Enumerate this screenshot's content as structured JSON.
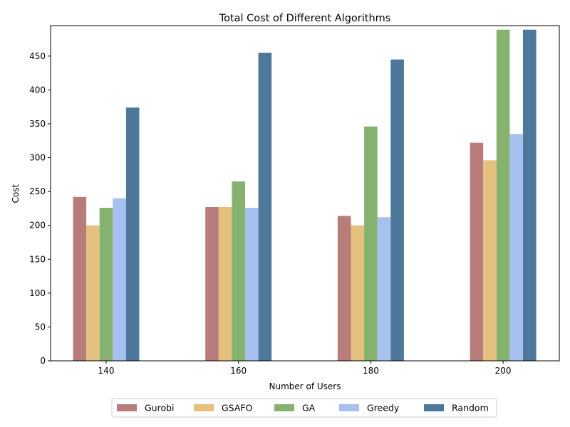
{
  "chart_data": {
    "type": "bar",
    "title": "Total Cost of Different Algorithms",
    "xlabel": "Number of Users",
    "ylabel": "Cost",
    "categories": [
      "140",
      "160",
      "180",
      "200"
    ],
    "ylim": [
      0,
      495
    ],
    "yticks": [
      0,
      50,
      100,
      150,
      200,
      250,
      300,
      350,
      400,
      450
    ],
    "grid": false,
    "legend_position": "bottom-center",
    "series": [
      {
        "name": "Gurobi",
        "color": "#b87c7a",
        "values": [
          242,
          227,
          214,
          322
        ]
      },
      {
        "name": "GSAFO",
        "color": "#e5c180",
        "values": [
          200,
          227,
          200,
          296
        ]
      },
      {
        "name": "GA",
        "color": "#86b270",
        "values": [
          226,
          265,
          346,
          489
        ]
      },
      {
        "name": "Greedy",
        "color": "#a6c0f0",
        "values": [
          240,
          226,
          212,
          335
        ]
      },
      {
        "name": "Random",
        "color": "#4e7899",
        "values": [
          374,
          455,
          445,
          489
        ]
      }
    ]
  }
}
